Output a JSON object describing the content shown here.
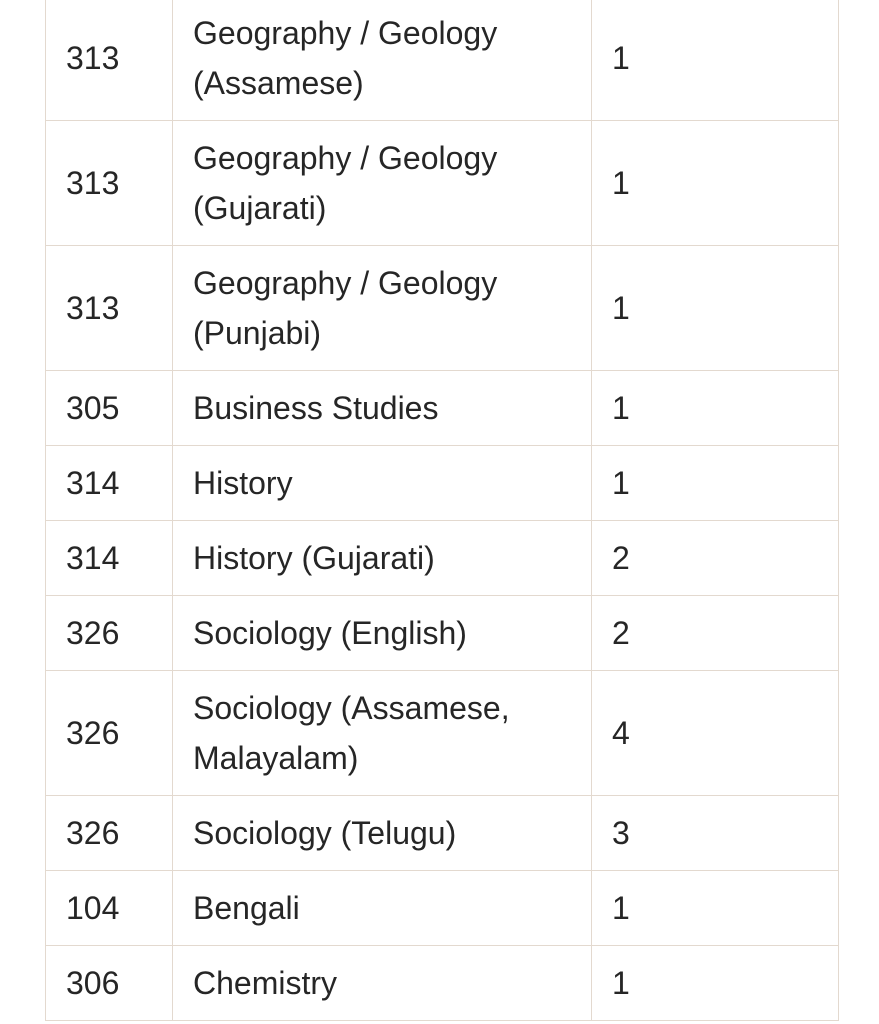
{
  "table": {
    "rows": [
      [
        "313",
        "Geography / Geology (Assamese)",
        "1"
      ],
      [
        "313",
        "Geography / Geology (Gujarati)",
        "1"
      ],
      [
        "313",
        "Geography / Geology (Punjabi)",
        "1"
      ],
      [
        "305",
        "Business Studies",
        "1"
      ],
      [
        "314",
        "History",
        "1"
      ],
      [
        "314",
        "History (Gujarati)",
        "2"
      ],
      [
        "326",
        "Sociology (English)",
        "2"
      ],
      [
        "326",
        "Sociology (Assamese, Malayalam)",
        "4"
      ],
      [
        "326",
        "Sociology (Telugu)",
        "3"
      ],
      [
        "104",
        "Bengali",
        "1"
      ],
      [
        "306",
        "Chemistry",
        "1"
      ]
    ]
  }
}
